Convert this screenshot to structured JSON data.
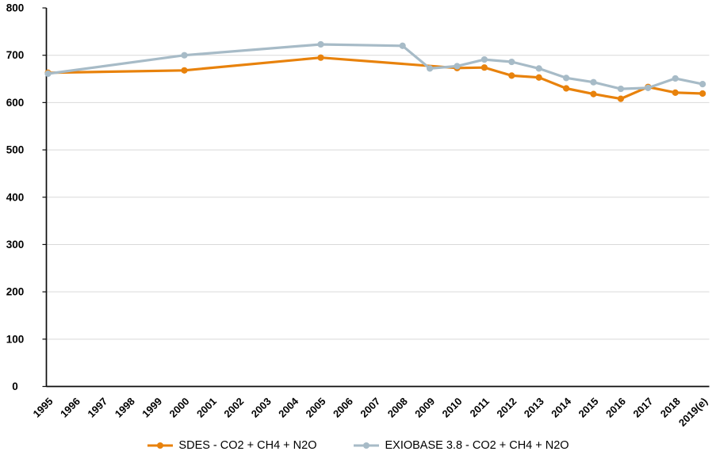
{
  "chart_data": {
    "type": "line",
    "title": "",
    "xlabel": "",
    "ylabel": "",
    "grid": true,
    "legend_position": "bottom",
    "ylim": [
      0,
      800
    ],
    "ytick_step": 100,
    "y_ticks": [
      0,
      100,
      200,
      300,
      400,
      500,
      600,
      700,
      800
    ],
    "categories": [
      "1995",
      "1996",
      "1997",
      "1998",
      "1999",
      "2000",
      "2001",
      "2002",
      "2003",
      "2004",
      "2005",
      "2006",
      "2007",
      "2008",
      "2009",
      "2010",
      "2011",
      "2012",
      "2013",
      "2014",
      "2015",
      "2016",
      "2017",
      "2018",
      "2019(e)"
    ],
    "series": [
      {
        "name": "SDES - CO2 + CH4 + N2O",
        "color": "#E8820C",
        "values": [
          663,
          null,
          null,
          null,
          null,
          668,
          null,
          null,
          null,
          null,
          695,
          null,
          null,
          null,
          null,
          673,
          674,
          657,
          653,
          630,
          618,
          608,
          633,
          621,
          619
        ]
      },
      {
        "name": "EXIOBASE 3.8 - CO2 + CH4 + N2O",
        "color": "#A7BBC7",
        "values": [
          661,
          null,
          null,
          null,
          null,
          700,
          null,
          null,
          null,
          null,
          723,
          null,
          null,
          720,
          672,
          677,
          691,
          686,
          672,
          652,
          643,
          629,
          631,
          651,
          639
        ]
      }
    ]
  },
  "colors": {
    "gridline": "#D9D9D9",
    "axis": "#0d0d0d",
    "tick_label": "#000000",
    "background": "#FFFFFF"
  }
}
